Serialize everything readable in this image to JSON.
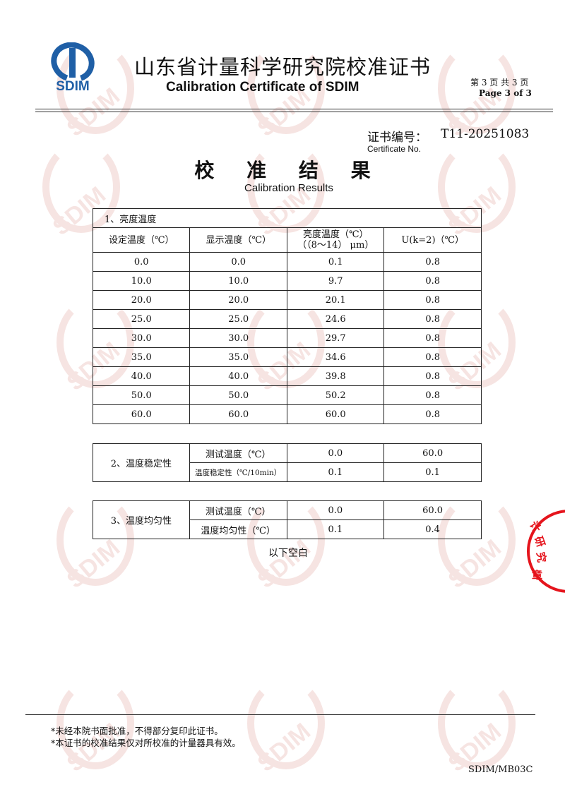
{
  "header": {
    "logo_text": "SDIM",
    "title_cn": "山东省计量科学研究院校准证书",
    "title_en": "Calibration Certificate of SDIM",
    "page_cn": "第 3 页 共 3 页",
    "page_en": "Page 3 of  3",
    "brand_color": "#1f5fa6"
  },
  "certificate": {
    "label_cn": "证书编号：",
    "number": "T11-20251083",
    "label_en": "Certificate No."
  },
  "section": {
    "title_cn": "校 准 结 果",
    "title_en": "Calibration Results"
  },
  "table1": {
    "title": "1、亮度温度",
    "headers": [
      "设定温度（℃）",
      "显示温度（℃）",
      "亮度温度（℃）\n（（8～14） μm）",
      "U(k=2)（℃）"
    ],
    "rows": [
      [
        "0.0",
        "0.0",
        "0.1",
        "0.8"
      ],
      [
        "10.0",
        "10.0",
        "9.7",
        "0.8"
      ],
      [
        "20.0",
        "20.0",
        "20.1",
        "0.8"
      ],
      [
        "25.0",
        "25.0",
        "24.6",
        "0.8"
      ],
      [
        "30.0",
        "30.0",
        "29.7",
        "0.8"
      ],
      [
        "35.0",
        "35.0",
        "34.6",
        "0.8"
      ],
      [
        "40.0",
        "40.0",
        "39.8",
        "0.8"
      ],
      [
        "50.0",
        "50.0",
        "50.2",
        "0.8"
      ],
      [
        "60.0",
        "60.0",
        "60.0",
        "0.8"
      ]
    ]
  },
  "table2": {
    "title": "2、温度稳定性",
    "rows": [
      [
        "测试温度（℃）",
        "0.0",
        "60.0"
      ],
      [
        "温度稳定性（℃/10min）",
        "0.1",
        "0.1"
      ]
    ]
  },
  "table3": {
    "title": "3、温度均匀性",
    "rows": [
      [
        "测试温度（℃）",
        "0.0",
        "60.0"
      ],
      [
        "温度均匀性（℃）",
        "0.1",
        "0.4"
      ]
    ]
  },
  "blank_note": "以下空白",
  "stamp": {
    "text": "计量科学研究院 校准专用章",
    "color": "#e5141c"
  },
  "watermark": "SDIM",
  "footer": {
    "note1": "*未经本院书面批准，不得部分复印此证书。",
    "note2": "*本证书的校准结果仅对所校准的计量器具有效。",
    "form_code": "SDIM/MB03C"
  }
}
